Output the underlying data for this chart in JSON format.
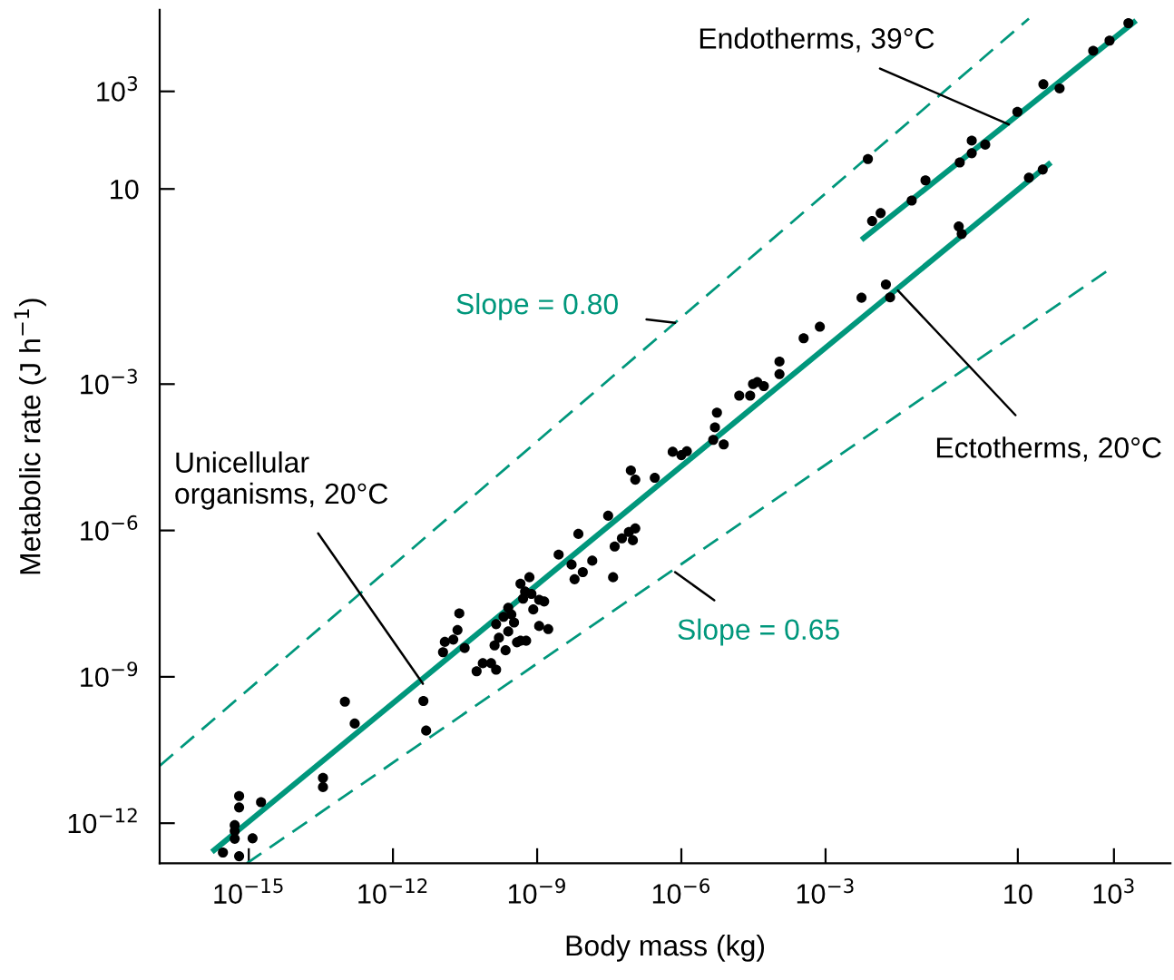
{
  "chart_data": {
    "type": "scatter",
    "xlabel": "Body mass (kg)",
    "ylabel": "Metabolic rate (J h$^{−1}$)",
    "log": "xy",
    "grid": false,
    "marker": "circle",
    "color": "#000000",
    "xlim": [
      1.4e-17,
      15000.0
    ],
    "ylim": [
      1.5e-13,
      47000.0
    ],
    "xticks": [
      {
        "value": 1e-15,
        "label": "10$^{−15}$"
      },
      {
        "value": 1e-12,
        "label": "10$^{−12}$"
      },
      {
        "value": 1e-09,
        "label": "10$^{−9}$"
      },
      {
        "value": 1e-06,
        "label": "10$^{−6}$"
      },
      {
        "value": 0.001,
        "label": "10$^{−3}$"
      },
      {
        "value": 10,
        "label": "10"
      },
      {
        "value": 1000.0,
        "label": "10$^{3}$"
      }
    ],
    "yticks": [
      {
        "value": 1e-12,
        "label": "10$^{−12}$"
      },
      {
        "value": 1e-09,
        "label": "10$^{−9}$"
      },
      {
        "value": 1e-06,
        "label": "10$^{−6}$"
      },
      {
        "value": 0.001,
        "label": "10$^{−3}$"
      },
      {
        "value": 10,
        "label": "10"
      },
      {
        "value": 1000.0,
        "label": "10$^{3}$"
      }
    ],
    "x": [
      2.9e-16,
      6.3e-16,
      5.1e-16,
      5.1e-16,
      5.1e-16,
      1.2e-15,
      6.3e-16,
      6.3e-16,
      1.8e-15,
      3.5e-14,
      3.5e-14,
      1e-13,
      1.6e-13,
      4.3e-12,
      4.9e-12,
      1.1e-11,
      1.2e-11,
      2.2e-11,
      1.8e-11,
      2.4e-11,
      3.1e-11,
      5.5e-11,
      7.4e-11,
      1.1e-10,
      1.4e-10,
      1.3e-10,
      1.6e-10,
      1.4e-10,
      2.2e-10,
      2.5e-10,
      2e-10,
      2.5e-10,
      2.9e-10,
      3.3e-10,
      3.8e-10,
      4.5e-10,
      5.9e-10,
      4.5e-10,
      5.6e-10,
      6.9e-10,
      7.6e-10,
      5.1e-10,
      1.1e-09,
      1.4e-09,
      8.3e-10,
      1.1e-09,
      1.7e-09,
      2.8e-09,
      5.2e-09,
      6e-09,
      8.9e-09,
      1.4e-08,
      7.2e-09,
      3e-08,
      3.8e-08,
      4.1e-08,
      5.8e-08,
      8.1e-08,
      1.1e-07,
      9.8e-08,
      8.9e-08,
      1.1e-07,
      2.8e-07,
      6.6e-07,
      1e-06,
      1.3e-06,
      4.6e-06,
      5e-06,
      5.5e-06,
      7.6e-06,
      1.6e-05,
      2.7e-05,
      3.1e-05,
      3.8e-05,
      5.2e-05,
      0.00011,
      0.00011,
      0.00035,
      0.00076,
      0.0056,
      0.018,
      0.022,
      0.59,
      0.68,
      17,
      33,
      0.0076,
      0.0093,
      0.014,
      0.062,
      0.12,
      0.62,
      1.1,
      1.1,
      2.1,
      9.8,
      34,
      74,
      370,
      810,
      2000
    ],
    "values": [
      2.5e-13,
      2.1e-13,
      4.8e-13,
      6.9e-13,
      9.1e-13,
      4.9e-13,
      2.1e-12,
      3.6e-12,
      2.7e-12,
      8.5e-12,
      5.5e-12,
      3.1e-10,
      1.1e-10,
      3.2e-10,
      7.9e-11,
      3.2e-09,
      5.2e-09,
      9.1e-09,
      5.8e-09,
      2e-08,
      3.9e-09,
      1.3e-09,
      1.9e-09,
      1.9e-09,
      1.4e-09,
      4.4e-09,
      6.3e-09,
      1.2e-08,
      3.5e-09,
      8.5e-09,
      1.7e-08,
      2.6e-08,
      1.9e-08,
      1.3e-08,
      5.1e-09,
      5.5e-09,
      5.5e-09,
      8.1e-08,
      5.6e-08,
      1.1e-07,
      5e-08,
      4e-08,
      3.8e-08,
      3.5e-08,
      2.4e-08,
      1.1e-08,
      9.5e-09,
      3.2e-07,
      2e-07,
      1e-07,
      1.4e-07,
      2.4e-07,
      8.5e-07,
      2e-06,
      1.1e-07,
      4.7e-07,
      6.9e-07,
      9.3e-07,
      1.1e-06,
      6.3e-07,
      1.7e-05,
      1.1e-05,
      1.2e-05,
      4.1e-05,
      3.5e-05,
      4.2e-05,
      7.2e-05,
      0.00013,
      0.00026,
      5.8e-05,
      0.00058,
      0.00058,
      0.001,
      0.0011,
      0.00091,
      0.0029,
      0.0016,
      0.0087,
      0.015,
      0.059,
      0.11,
      0.06,
      1.7,
      1.2,
      17,
      25,
      41,
      2.2,
      3.2,
      5.8,
      15,
      35,
      98,
      54,
      81,
      380,
      1400,
      1150,
      6800,
      11000,
      25000
    ],
    "series": [
      {
        "type": "line",
        "color": "#00977c",
        "line_style": "solid",
        "marker": "none",
        "x": [
          1.9e-16,
          44
        ],
        "values": [
          2.8e-13,
          32
        ]
      },
      {
        "type": "line",
        "color": "#00977c",
        "line_style": "solid",
        "marker": "none",
        "x": [
          0.0062,
          2600
        ],
        "values": [
          0.98,
          26000
        ]
      },
      {
        "type": "line",
        "color": "#00977c",
        "line_style": "dashed",
        "marker": "none",
        "x": [
          1.4e-17,
          17
        ],
        "values": [
          1.5e-11,
          31000
        ]
      },
      {
        "type": "line",
        "color": "#00977c",
        "line_style": "dashed",
        "marker": "none",
        "x": [
          9.1e-16,
          830
        ],
        "values": [
          1.5e-13,
          0.23
        ]
      }
    ],
    "annotations": [
      {
        "text": "Endotherms, 39°C",
        "x": 6.5,
        "y": 210
      },
      {
        "text": "Ectotherms, 20°C",
        "x": 0.032,
        "y": 0.083
      },
      {
        "text": "Unicellular\norganisms, 20°C",
        "x": 4.2e-12,
        "y": 7.2e-10
      },
      {
        "text": "Slope = 0.80",
        "x": 7.4e-07,
        "y": 0.018
      },
      {
        "text": "Slope = 0.65",
        "x": 7.4e-07,
        "y": 1.4e-07
      }
    ]
  }
}
